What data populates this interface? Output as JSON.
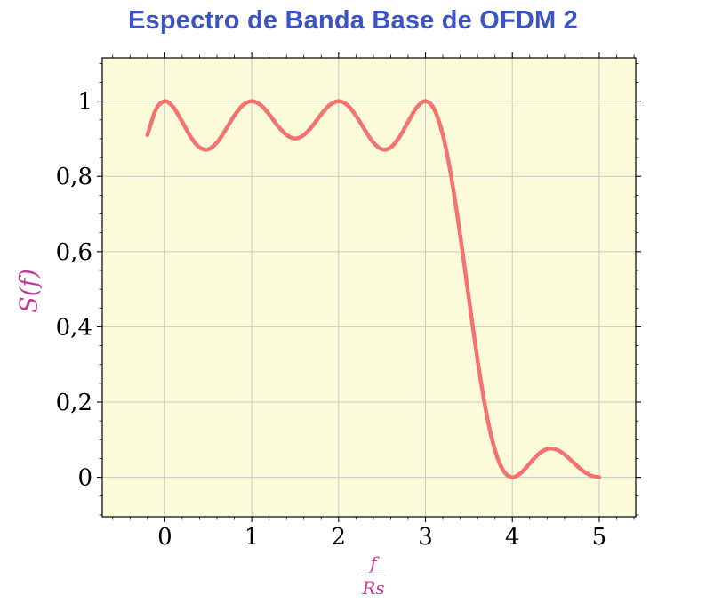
{
  "title": "Espectro de Banda Base de OFDM 2",
  "y_axis_label": "S(f)",
  "x_axis_label": {
    "numerator": "f",
    "denominator": "Rs"
  },
  "colors": {
    "title": "#3b53c4",
    "curve": "#f4736f",
    "plot_bg": "#fbfbda",
    "grid": "#c8c8c8",
    "frame": "#000000",
    "axis_label": "#c03c96",
    "tick_label": "#000000"
  },
  "chart_data": {
    "type": "line",
    "title": "Espectro de Banda Base de OFDM 2",
    "xlabel": "f/Rs",
    "ylabel": "S(f)",
    "xlim": [
      -0.72,
      5.42
    ],
    "ylim": [
      -0.105,
      1.115
    ],
    "grid": true,
    "legend_position": "none",
    "x_ticks": [
      0,
      1,
      2,
      3,
      4,
      5
    ],
    "x_tick_labels": [
      "0",
      "1",
      "2",
      "3",
      "4",
      "5"
    ],
    "y_ticks": [
      0,
      0.2,
      0.4,
      0.6,
      0.8,
      1
    ],
    "y_tick_labels": [
      "0",
      "0,2",
      "0,4",
      "0,6",
      "0,8",
      "1"
    ],
    "x_minor_step": 0.2,
    "y_minor_step": 0.05,
    "series": [
      {
        "name": "S(f)",
        "x": [
          -0.2,
          -0.1,
          0,
          0.1,
          0.2,
          0.3,
          0.4,
          0.5,
          0.6,
          0.7,
          0.8,
          0.9,
          1,
          1.1,
          1.2,
          1.3,
          1.4,
          1.5,
          1.6,
          1.7,
          1.8,
          1.9,
          2,
          2.1,
          2.2,
          2.3,
          2.4,
          2.5,
          2.6,
          2.7,
          2.8,
          2.9,
          3,
          3.1,
          3.2,
          3.3,
          3.4,
          3.5,
          3.6,
          3.7,
          3.8,
          3.9,
          4,
          4.1,
          4.2,
          4.3,
          4.4,
          4.5,
          4.6,
          4.7,
          4.8,
          4.9,
          5
        ],
        "y": [
          0.9101,
          0.9787,
          1,
          0.9833,
          0.9451,
          0.9042,
          0.8767,
          0.8718,
          0.89,
          0.924,
          0.9614,
          0.9896,
          1,
          0.9901,
          0.965,
          0.9344,
          0.9099,
          0.9006,
          0.9099,
          0.9344,
          0.965,
          0.9901,
          1,
          0.9896,
          0.9614,
          0.924,
          0.89,
          0.8718,
          0.8767,
          0.9042,
          0.9451,
          0.9833,
          1,
          0.9787,
          0.9101,
          0.7947,
          0.6434,
          0.4748,
          0.311,
          0.1722,
          0.0724,
          0.0164,
          0,
          0.0118,
          0.0369,
          0.0615,
          0.0753,
          0.0745,
          0.0608,
          0.0399,
          0.0192,
          0.0049,
          0
        ]
      }
    ]
  }
}
